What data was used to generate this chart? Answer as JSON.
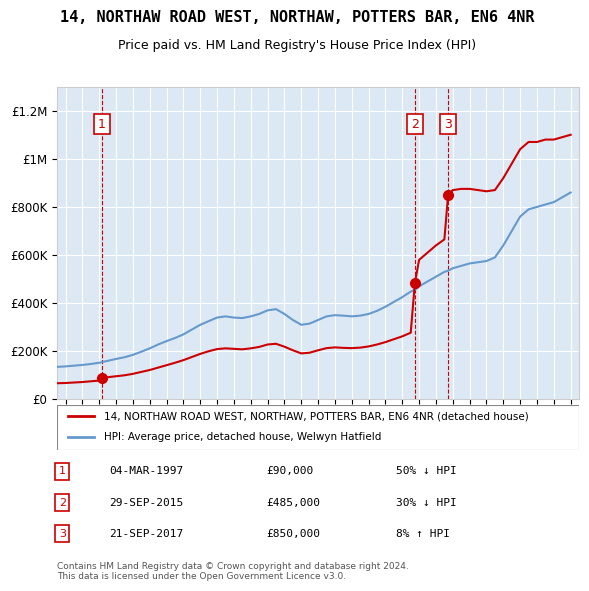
{
  "title": "14, NORTHAW ROAD WEST, NORTHAW, POTTERS BAR, EN6 4NR",
  "subtitle": "Price paid vs. HM Land Registry's House Price Index (HPI)",
  "legend_line1": "14, NORTHAW ROAD WEST, NORTHAW, POTTERS BAR, EN6 4NR (detached house)",
  "legend_line2": "HPI: Average price, detached house, Welwyn Hatfield",
  "transactions": [
    {
      "num": 1,
      "date": "04-MAR-1997",
      "price": 90000,
      "pct": "50%",
      "dir": "↓",
      "year": 1997.17
    },
    {
      "num": 2,
      "date": "29-SEP-2015",
      "price": 485000,
      "pct": "30%",
      "dir": "↓",
      "year": 2015.75
    },
    {
      "num": 3,
      "date": "21-SEP-2017",
      "price": 850000,
      "pct": "8%",
      "dir": "↑",
      "year": 2017.72
    }
  ],
  "copyright": "Contains HM Land Registry data © Crown copyright and database right 2024.\nThis data is licensed under the Open Government Licence v3.0.",
  "hpi_color": "#6699cc",
  "price_color": "#cc0000",
  "bg_color": "#dce9f5",
  "grid_color": "#ffffff",
  "vline_color": "#cc0000",
  "box_color": "#cc0000",
  "ylim": [
    0,
    1300000
  ],
  "xlim_start": 1994.5,
  "xlim_end": 2025.5,
  "hpi_data": {
    "years": [
      1994.5,
      1995,
      1995.5,
      1996,
      1996.5,
      1997,
      1997.17,
      1997.5,
      1998,
      1998.5,
      1999,
      1999.5,
      2000,
      2000.5,
      2001,
      2001.5,
      2002,
      2002.5,
      2003,
      2003.5,
      2004,
      2004.5,
      2005,
      2005.5,
      2006,
      2006.5,
      2007,
      2007.5,
      2008,
      2008.5,
      2009,
      2009.5,
      2010,
      2010.5,
      2011,
      2011.5,
      2012,
      2012.5,
      2013,
      2013.5,
      2014,
      2014.5,
      2015,
      2015.5,
      2015.75,
      2016,
      2016.5,
      2017,
      2017.5,
      2017.72,
      2018,
      2018.5,
      2019,
      2019.5,
      2020,
      2020.5,
      2021,
      2021.5,
      2022,
      2022.5,
      2023,
      2023.5,
      2024,
      2024.5,
      2025
    ],
    "values": [
      135000,
      137000,
      140000,
      143000,
      147000,
      152000,
      155000,
      160000,
      168000,
      175000,
      185000,
      198000,
      212000,
      228000,
      242000,
      255000,
      270000,
      290000,
      310000,
      325000,
      340000,
      345000,
      340000,
      338000,
      345000,
      355000,
      370000,
      375000,
      355000,
      330000,
      310000,
      315000,
      330000,
      345000,
      350000,
      348000,
      345000,
      348000,
      355000,
      368000,
      385000,
      405000,
      425000,
      448000,
      455000,
      470000,
      490000,
      510000,
      530000,
      535000,
      545000,
      555000,
      565000,
      570000,
      575000,
      590000,
      640000,
      700000,
      760000,
      790000,
      800000,
      810000,
      820000,
      840000,
      860000
    ]
  },
  "price_paid_data": {
    "years": [
      1994.5,
      1995,
      1995.5,
      1996,
      1996.5,
      1997,
      1997.17,
      1997.5,
      1998,
      1998.5,
      1999,
      1999.5,
      2000,
      2000.5,
      2001,
      2001.5,
      2002,
      2002.5,
      2003,
      2003.5,
      2004,
      2004.5,
      2005,
      2005.5,
      2006,
      2006.5,
      2007,
      2007.5,
      2008,
      2008.5,
      2009,
      2009.5,
      2010,
      2010.5,
      2011,
      2011.5,
      2012,
      2012.5,
      2013,
      2013.5,
      2014,
      2014.5,
      2015,
      2015.5,
      2015.75,
      2016,
      2016.5,
      2017,
      2017.5,
      2017.72,
      2018,
      2018.5,
      2019,
      2019.5,
      2020,
      2020.5,
      2021,
      2021.5,
      2022,
      2022.5,
      2023,
      2023.5,
      2024,
      2024.5,
      2025
    ],
    "values": [
      67000,
      68000,
      70000,
      72000,
      75000,
      78000,
      90000,
      92000,
      96000,
      100000,
      106000,
      114000,
      122000,
      132000,
      142000,
      152000,
      163000,
      176000,
      189000,
      200000,
      209000,
      212000,
      210000,
      208000,
      212000,
      218000,
      228000,
      231000,
      219000,
      204000,
      191000,
      194000,
      204000,
      213000,
      216000,
      214000,
      213000,
      215000,
      220000,
      228000,
      238000,
      250000,
      262000,
      277000,
      485000,
      580000,
      610000,
      640000,
      665000,
      850000,
      870000,
      875000,
      875000,
      870000,
      865000,
      870000,
      920000,
      980000,
      1040000,
      1070000,
      1070000,
      1080000,
      1080000,
      1090000,
      1100000
    ]
  }
}
